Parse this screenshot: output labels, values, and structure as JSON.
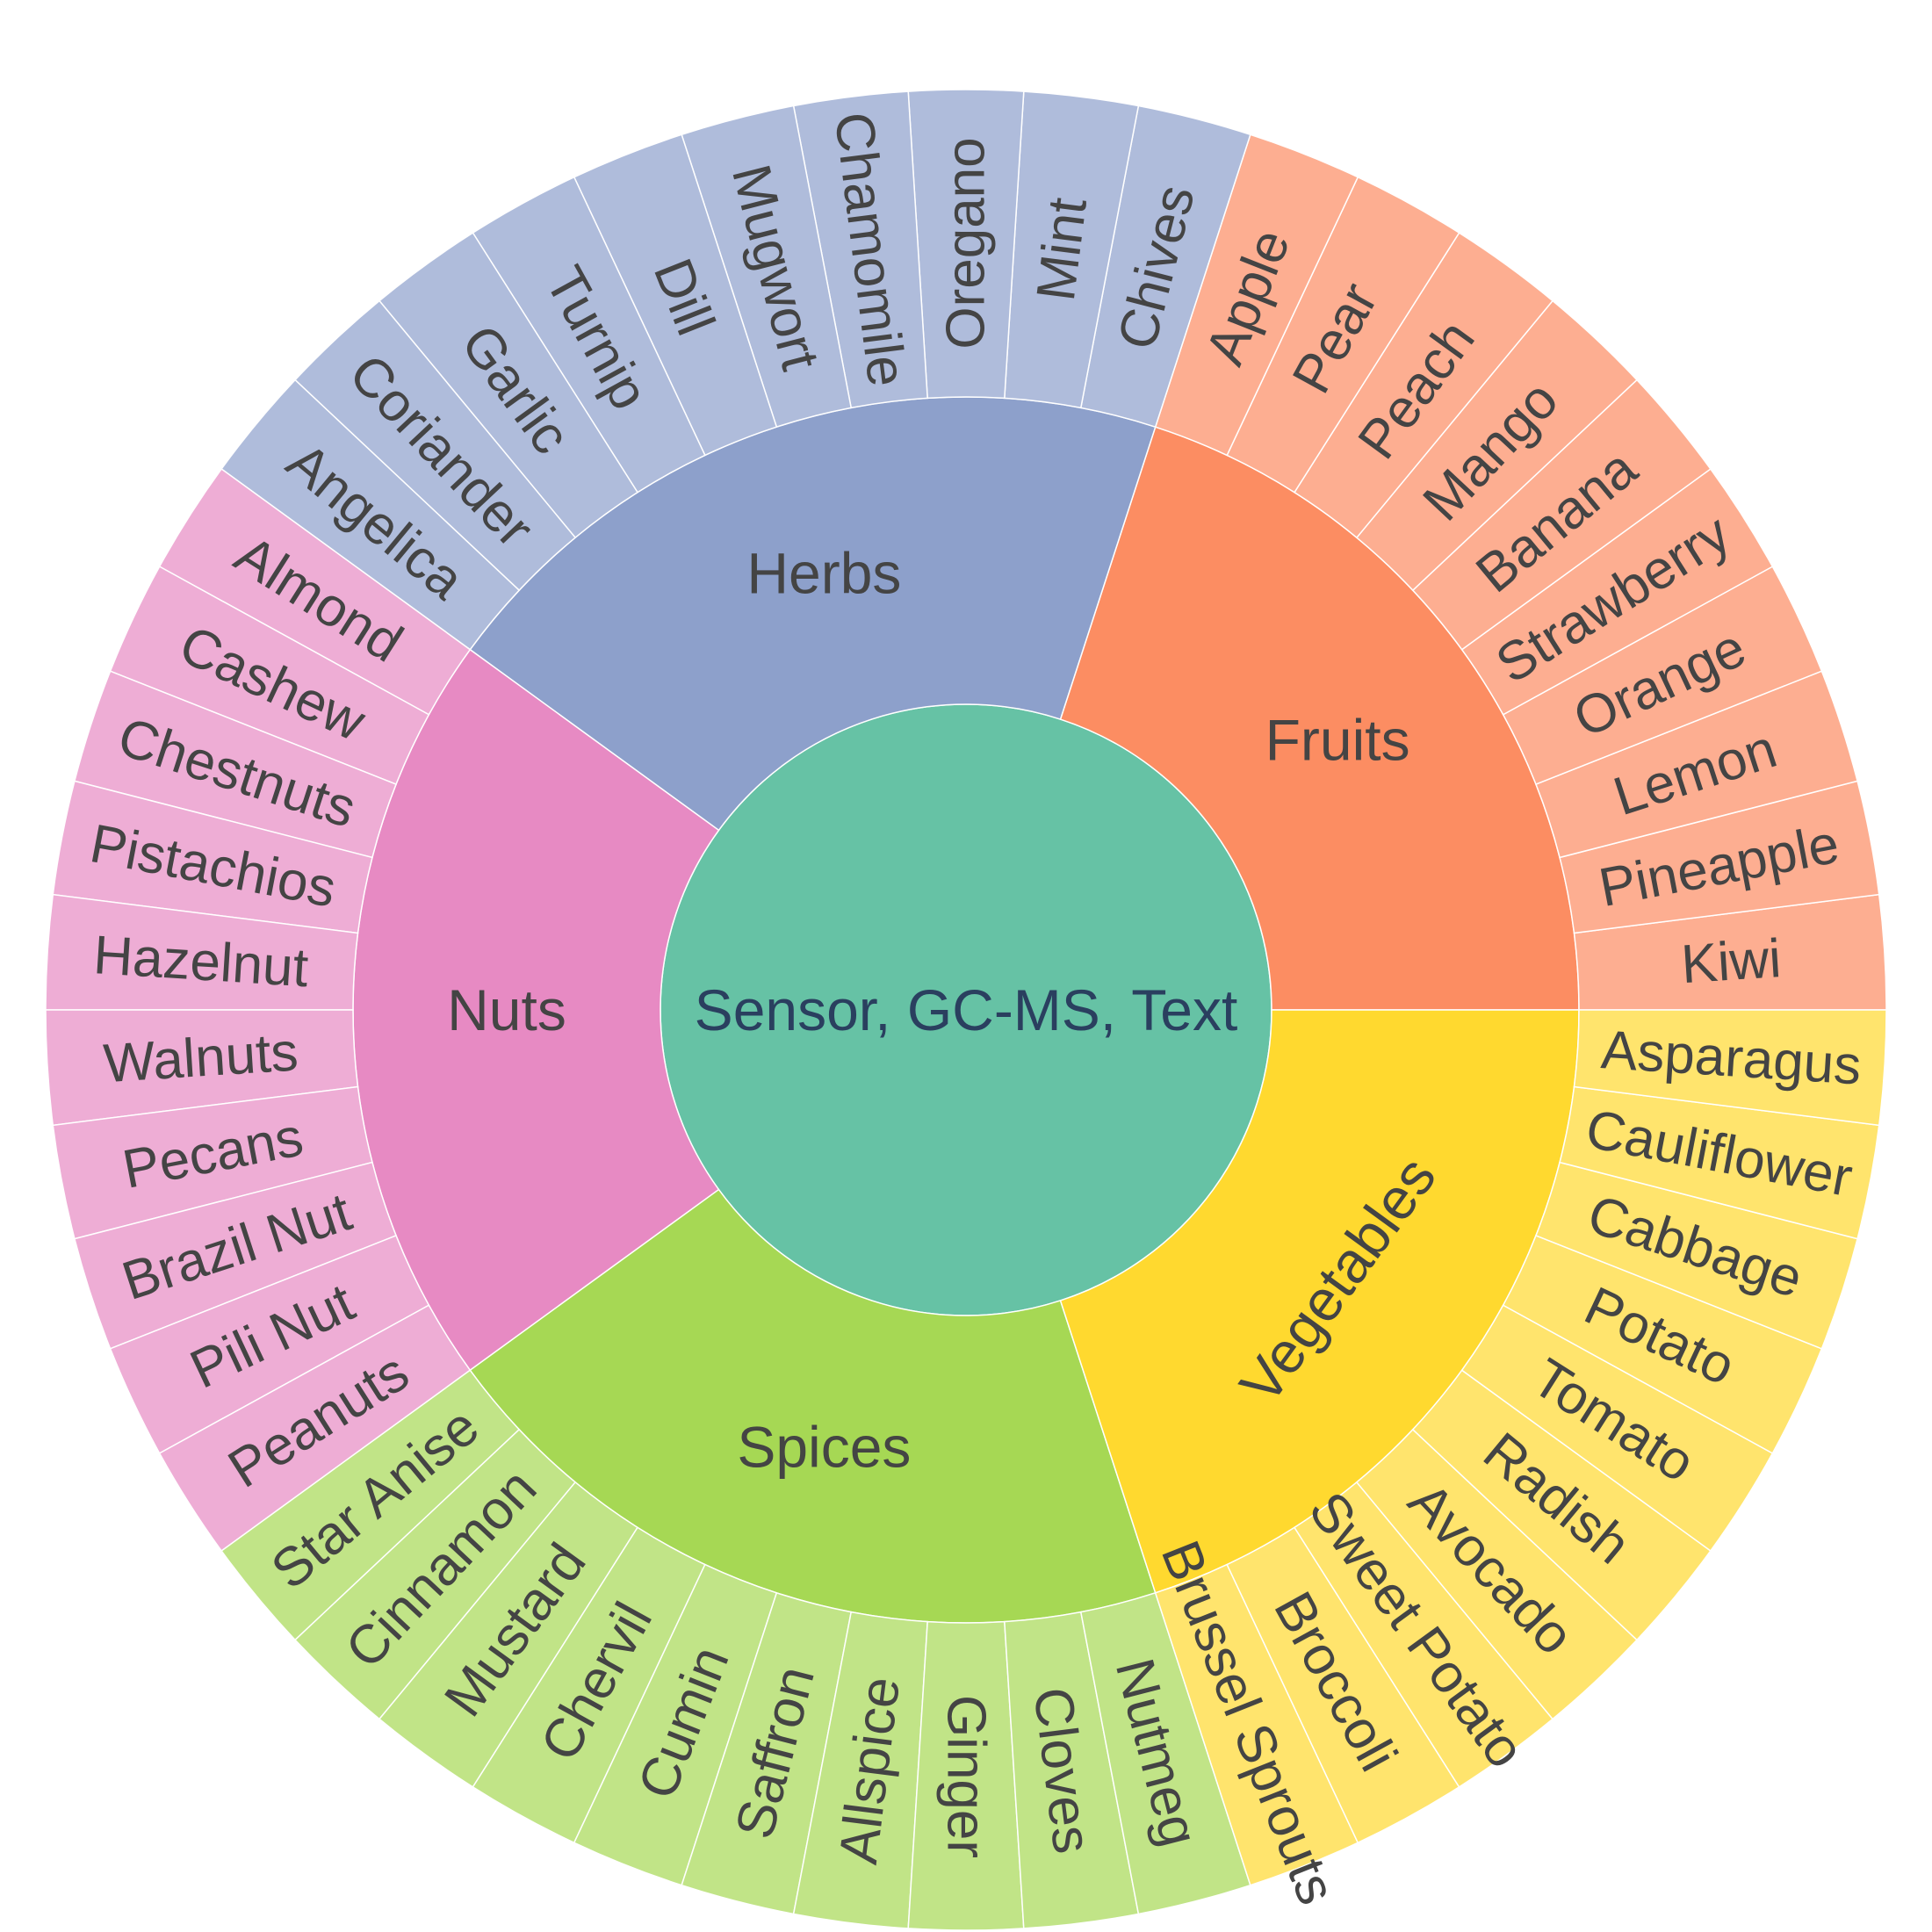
{
  "chart_data": {
    "type": "sunburst",
    "root": {
      "label": "Sensor, GC-MS, Text",
      "color": "#66c2a5"
    },
    "categories": [
      {
        "label": "Fruits",
        "color": "#fc8d62",
        "leaf_color": "#fdae91",
        "children": [
          "Kiwi",
          "Pineapple",
          "Lemon",
          "Orange",
          "Strawberry",
          "Banana",
          "Mango",
          "Peach",
          "Pear",
          "Apple"
        ]
      },
      {
        "label": "Herbs",
        "color": "#8da0cb",
        "leaf_color": "#afbcdb",
        "children": [
          "Chives",
          "Mint",
          "Oregano",
          "Chamomile",
          "Mugwort",
          "Dill",
          "Turnip",
          "Garlic",
          "Coriander",
          "Angelica"
        ]
      },
      {
        "label": "Nuts",
        "color": "#e78ac3",
        "leaf_color": "#eeadd5",
        "children": [
          "Almond",
          "Cashew",
          "Chestnuts",
          "Pistachios",
          "Hazelnut",
          "Walnuts",
          "Pecans",
          "Brazil Nut",
          "Pili Nut",
          "Peanuts"
        ]
      },
      {
        "label": "Spices",
        "color": "#a6d854",
        "leaf_color": "#c1e487",
        "children": [
          "Star Anise",
          "Cinnamon",
          "Mustard",
          "Chervil",
          "Cumin",
          "Saffron",
          "Allspice",
          "Ginger",
          "Cloves",
          "Nutmeg"
        ]
      },
      {
        "label": "Vegetables",
        "color": "#ffd92f",
        "leaf_color": "#ffe46d",
        "children": [
          "Brussel Sprouts",
          "Broccoli",
          "Sweet Potato",
          "Avocado",
          "Radish",
          "Tomato",
          "Potato",
          "Cabbage",
          "Cauliflower",
          "Asparagus"
        ]
      }
    ],
    "leaf_value": 1
  }
}
